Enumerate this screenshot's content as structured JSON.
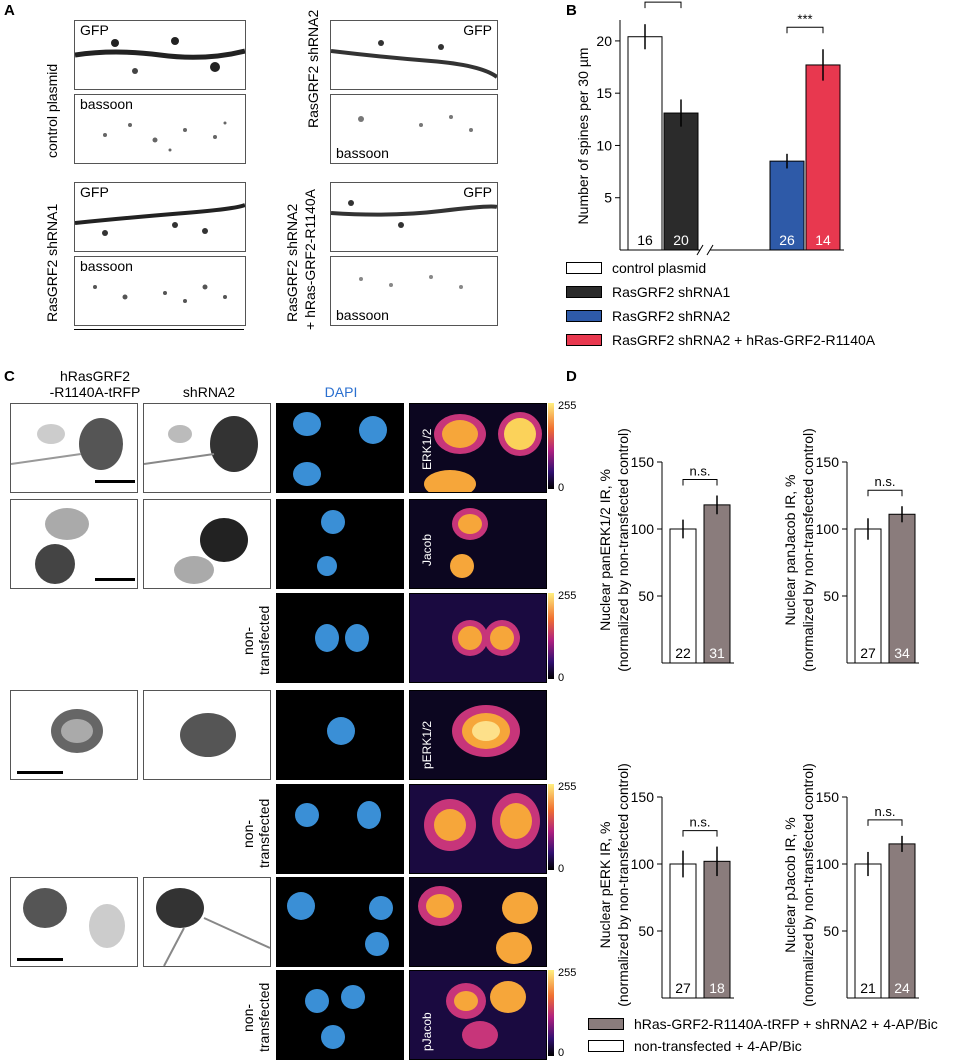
{
  "panels": {
    "A": "A",
    "B": "B",
    "C": "C",
    "D": "D"
  },
  "panelA": {
    "labels": {
      "control": "control plasmid",
      "sh1": "RasGRF2 shRNA1",
      "sh2": "RasGRF2 shRNA2",
      "sh2r_line1": "RasGRF2 shRNA2",
      "sh2r_line2": "+ hRas-GRF2-R1140A",
      "gfp": "GFP",
      "bassoon": "bassoon"
    }
  },
  "panelC": {
    "col1_line1": "hRasGRF2",
    "col1_line2": "-R1140A-tRFP",
    "col2": "shRNA2",
    "col3": "DAPI",
    "erk": "ERK1/2",
    "jacob": "Jacob",
    "perk": "pERK1/2",
    "pjacob": "pJacob",
    "non1": "non-",
    "non2": "transfected",
    "scale_max": "255",
    "scale_min": "0"
  },
  "legendB": [
    {
      "label": "control plasmid",
      "color": "#ffffff"
    },
    {
      "label": "RasGRF2 shRNA1",
      "color": "#2b2b2b"
    },
    {
      "label": "RasGRF2 shRNA2",
      "color": "#2e5aa8"
    },
    {
      "label": "RasGRF2 shRNA2 + hRas-GRF2-R1140A",
      "color": "#e8384f"
    }
  ],
  "legendD": [
    {
      "label": "hRas-GRF2-R1140A-tRFP + shRNA2 + 4-AP/Bic",
      "color": "#8a7c7c"
    },
    {
      "label": "non-transfected + 4-AP/Bic",
      "color": "#ffffff"
    }
  ],
  "chart_data": [
    {
      "type": "bar",
      "id": "B",
      "ylabel": "Number of spines per 30 µm",
      "ylim": [
        0,
        22
      ],
      "yticks": [
        5,
        10,
        15,
        20
      ],
      "categories": [
        "control plasmid",
        "RasGRF2 shRNA1",
        "RasGRF2 shRNA2",
        "RasGRF2 shRNA2 + hRas-GRF2-R1140A"
      ],
      "values": [
        20.4,
        13.1,
        8.5,
        17.7
      ],
      "errors": [
        1.2,
        1.3,
        0.7,
        1.5
      ],
      "n": [
        "16",
        "20",
        "26",
        "14"
      ],
      "colors": [
        "#ffffff",
        "#2b2b2b",
        "#2e5aa8",
        "#e8384f"
      ],
      "significance": [
        {
          "pair": [
            0,
            1
          ],
          "label": "***"
        },
        {
          "pair": [
            2,
            3
          ],
          "label": "***"
        }
      ]
    },
    {
      "type": "bar",
      "id": "D1",
      "ylabel_line1": "Nuclear panERK1/2 IR, %",
      "ylabel_line2": "(normalized by non-transfected control)",
      "ylim": [
        0,
        150
      ],
      "yticks": [
        50,
        100,
        150
      ],
      "categories": [
        "non-transfected + 4-AP/Bic",
        "hRas-GRF2-R1140A-tRFP + shRNA2 + 4-AP/Bic"
      ],
      "values": [
        100,
        118
      ],
      "errors": [
        7,
        7
      ],
      "n": [
        "22",
        "31"
      ],
      "colors": [
        "#ffffff",
        "#8a7c7c"
      ],
      "significance": [
        {
          "pair": [
            0,
            1
          ],
          "label": "n.s."
        }
      ]
    },
    {
      "type": "bar",
      "id": "D2",
      "ylabel_line1": "Nuclear panJacob IR, %",
      "ylabel_line2": "(normalized by non-transfected control)",
      "ylim": [
        0,
        150
      ],
      "yticks": [
        50,
        100,
        150
      ],
      "categories": [
        "non-transfected + 4-AP/Bic",
        "hRas-GRF2-R1140A-tRFP + shRNA2 + 4-AP/Bic"
      ],
      "values": [
        100,
        111
      ],
      "errors": [
        8,
        6
      ],
      "n": [
        "27",
        "34"
      ],
      "colors": [
        "#ffffff",
        "#8a7c7c"
      ],
      "significance": [
        {
          "pair": [
            0,
            1
          ],
          "label": "n.s."
        }
      ]
    },
    {
      "type": "bar",
      "id": "D3",
      "ylabel_line1": "Nuclear pERK IR, %",
      "ylabel_line2": "(normalized by non-transfected control)",
      "ylim": [
        0,
        150
      ],
      "yticks": [
        50,
        100,
        150
      ],
      "categories": [
        "non-transfected + 4-AP/Bic",
        "hRas-GRF2-R1140A-tRFP + shRNA2 + 4-AP/Bic"
      ],
      "values": [
        100,
        102
      ],
      "errors": [
        10,
        11
      ],
      "n": [
        "27",
        "18"
      ],
      "colors": [
        "#ffffff",
        "#8a7c7c"
      ],
      "significance": [
        {
          "pair": [
            0,
            1
          ],
          "label": "n.s."
        }
      ]
    },
    {
      "type": "bar",
      "id": "D4",
      "ylabel_line1": "Nuclear pJacob IR, %",
      "ylabel_line2": "(normalized by non-transfected control)",
      "ylim": [
        0,
        150
      ],
      "yticks": [
        50,
        100,
        150
      ],
      "categories": [
        "non-transfected + 4-AP/Bic",
        "hRas-GRF2-R1140A-tRFP + shRNA2 + 4-AP/Bic"
      ],
      "values": [
        100,
        115
      ],
      "errors": [
        9,
        6
      ],
      "n": [
        "21",
        "24"
      ],
      "colors": [
        "#ffffff",
        "#8a7c7c"
      ],
      "significance": [
        {
          "pair": [
            0,
            1
          ],
          "label": "n.s."
        }
      ]
    }
  ]
}
